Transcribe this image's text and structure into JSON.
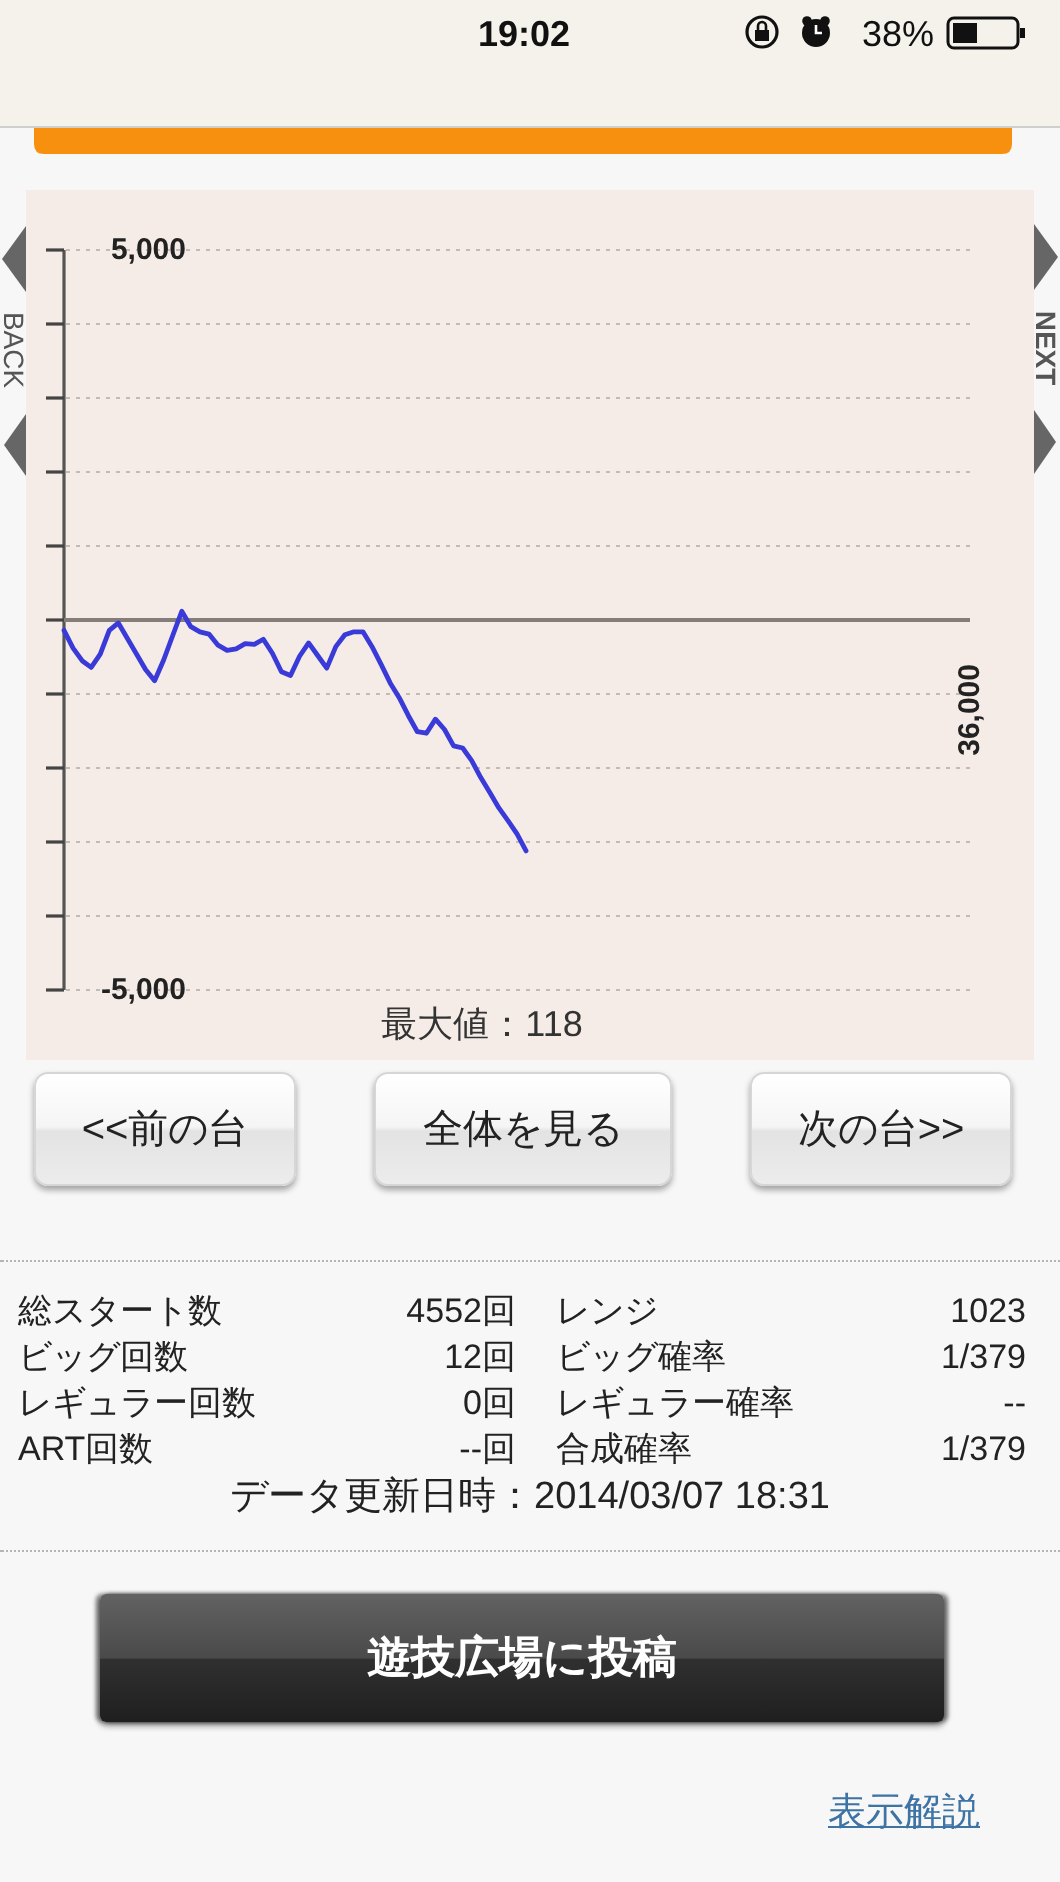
{
  "chart_data": [
    {
      "type": "other",
      "annotations": [
        "19:02",
        "38%"
      ]
    },
    {
      "type": "line",
      "annotations": [
        "BACK",
        "NEXT",
        "36,000",
        "最大値：118"
      ],
      "color": "#3a3ad8",
      "categories": [
        null,
        null,
        null,
        null,
        null,
        null,
        null,
        null,
        null,
        null,
        null,
        null,
        null,
        null,
        null,
        null,
        null,
        null,
        null,
        null,
        null,
        null,
        null,
        null,
        null,
        null,
        null,
        null,
        null,
        null,
        null,
        null,
        null,
        null,
        null,
        null,
        null,
        null,
        null,
        null,
        null,
        null,
        null,
        null,
        null,
        null,
        null,
        null,
        null,
        null,
        null,
        null,
        null,
        null,
        null,
        null,
        null,
        null,
        null,
        null,
        null,
        null,
        null,
        null,
        null,
        null,
        null,
        null,
        null,
        null,
        null,
        null,
        null,
        null,
        null,
        null,
        null,
        null,
        null,
        null,
        null,
        null,
        null,
        null,
        null,
        null,
        null,
        null,
        null,
        null,
        null,
        null,
        null,
        null,
        null,
        null,
        null,
        null,
        null,
        null,
        null
      ],
      "values": [
        -140,
        -380,
        -550,
        -640,
        -460,
        -140,
        -40,
        -250,
        -460,
        -670,
        -820,
        -540,
        -210,
        118,
        -90,
        -160,
        -190,
        -340,
        -410,
        -390,
        -320,
        -330,
        -260,
        -450,
        -700,
        -750,
        -490,
        -310,
        -480,
        -650,
        -360,
        -200,
        -160,
        -160,
        -360,
        -600,
        -850,
        -1050,
        -1290,
        -1510,
        -1530,
        -1340,
        -1480,
        -1700,
        -1730,
        -1900,
        -2130,
        -2330,
        -2540,
        -2710,
        -2890,
        -3120,
        null,
        null,
        null,
        null,
        null,
        null,
        null,
        null,
        null,
        null,
        null,
        null,
        null,
        null,
        null,
        null,
        null,
        null,
        null,
        null,
        null,
        null,
        null,
        null,
        null,
        null,
        null,
        null,
        null,
        null,
        null,
        null,
        null,
        null,
        null,
        null,
        null,
        null,
        null,
        null,
        null,
        null,
        null,
        null,
        null,
        null,
        null,
        null,
        null
      ],
      "ylim": [
        -5000,
        5000
      ],
      "yticks": [
        {
          "value": 5000,
          "label": "5,000"
        },
        {
          "value": 4000,
          "label": null
        },
        {
          "value": 3000,
          "label": null
        },
        {
          "value": 2000,
          "label": null
        },
        {
          "value": 1000,
          "label": null
        },
        {
          "value": 0,
          "label": null
        },
        {
          "value": -1000,
          "label": null
        },
        {
          "value": -2000,
          "label": null
        },
        {
          "value": -3000,
          "label": null
        },
        {
          "value": -4000,
          "label": null
        },
        {
          "value": -5000,
          "label": "-5,000"
        }
      ],
      "grid": "y"
    },
    {
      "type": "other",
      "annotations": [
        "<<前の台",
        "全体を見る",
        "次の台>>"
      ]
    },
    {
      "type": "other",
      "annotations": [
        "総スタート数",
        "4552回",
        "レンジ",
        "1023",
        "ビッグ回数",
        "12回",
        "ビッグ確率",
        "1/379",
        "レギュラー回数",
        "0回",
        "レギュラー確率",
        "--",
        "ART回数",
        "--回",
        "合成確率",
        "1/379",
        "データ更新日時：2014/03/07 18:31"
      ]
    },
    {
      "type": "other",
      "annotations": [
        "遊技広場に投稿",
        "表示解説"
      ]
    }
  ]
}
